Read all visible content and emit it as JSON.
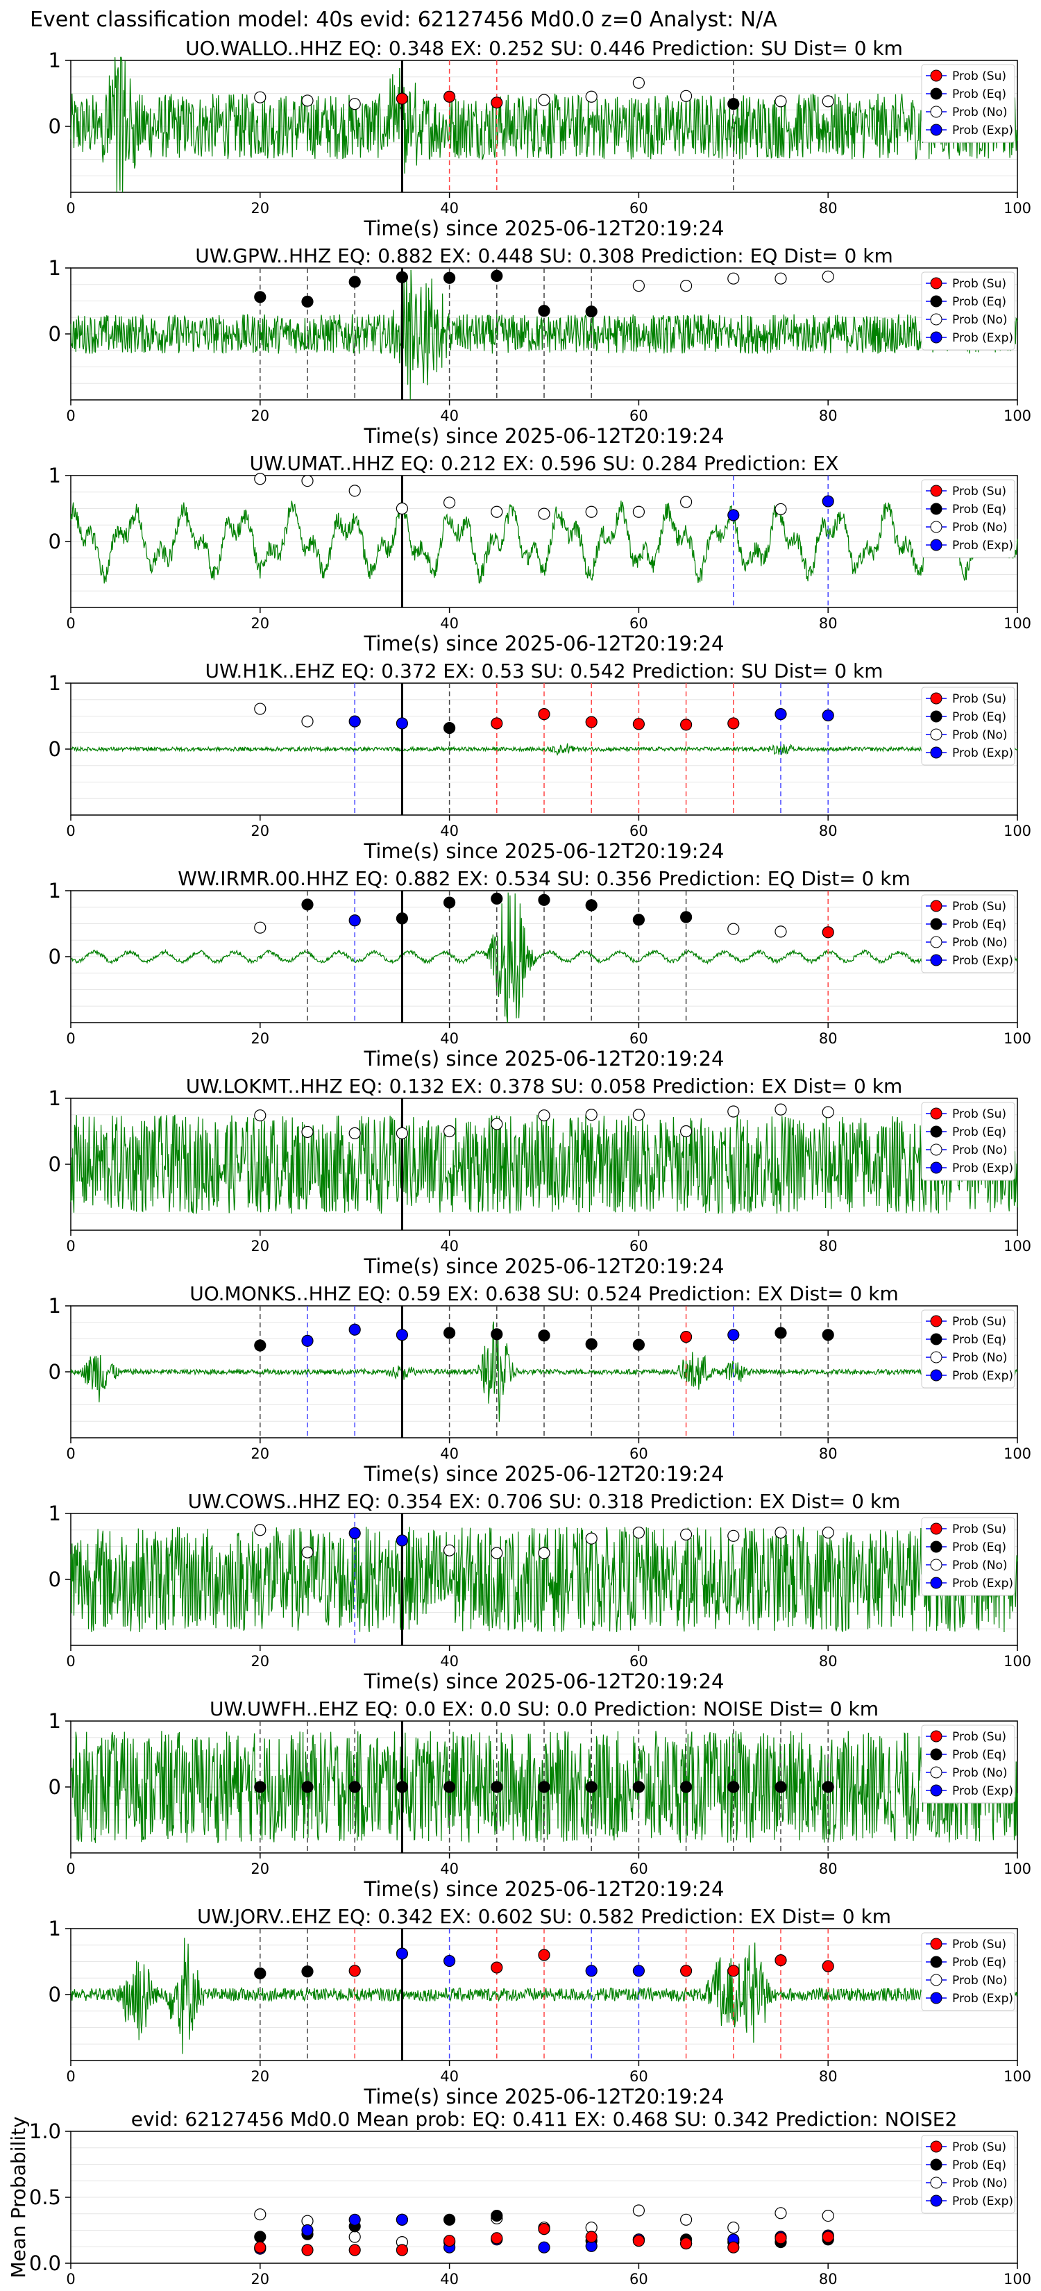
{
  "page_title": "Event classification model: 40s evid: 62127456 Md0.0 z=0 Analyst: N/A",
  "common": {
    "xlabel": "Time(s) since 2025-06-12T20:19:24",
    "xticks": [
      0,
      20,
      40,
      60,
      80,
      100
    ],
    "legend": [
      "Prob (Su)",
      "Prob (Eq)",
      "Prob (No)",
      "Prob (Exp)"
    ],
    "window_times": [
      20,
      25,
      30,
      35,
      40,
      45,
      50,
      55,
      60,
      65,
      70,
      75,
      80
    ],
    "arrival_time": 35
  },
  "colors": {
    "waveform": "#008000",
    "su": "#ff0000",
    "eq": "#000000",
    "no": "#ffffff",
    "exp": "#0000ff",
    "arrival_line": "#000000"
  },
  "chart_data": [
    {
      "type": "line",
      "title": "UO.WALLO..HHZ   EQ: 0.348   EX: 0.252   SU: 0.446   Prediction: SU    Dist= 0 km",
      "xlim": [
        0,
        100
      ],
      "ylim": [
        -1,
        1
      ],
      "yticks": [
        0,
        1
      ],
      "waveform": {
        "style": "noise",
        "amp": 0.5,
        "spikes": [
          [
            5,
            1.5
          ],
          [
            35,
            0.7
          ]
        ]
      },
      "classes": [
        "no",
        "no",
        "no",
        "su",
        "su",
        "su",
        "no",
        "no",
        "no",
        "no",
        "eq",
        "no",
        "no"
      ],
      "probs": [
        0.44,
        0.39,
        0.34,
        0.42,
        0.45,
        0.36,
        0.4,
        0.45,
        0.66,
        0.46,
        0.34,
        0.38,
        0.38
      ]
    },
    {
      "type": "line",
      "title": "UW.GPW..HHZ   EQ: 0.882   EX: 0.448   SU: 0.308   Prediction: EQ    Dist= 0 km",
      "xlim": [
        0,
        100
      ],
      "ylim": [
        -1,
        1
      ],
      "yticks": [
        0,
        1
      ],
      "waveform": {
        "style": "noise",
        "amp": 0.3,
        "spikes": [
          [
            36,
            1.0
          ],
          [
            38,
            0.8
          ]
        ]
      },
      "classes": [
        "eq",
        "eq",
        "eq",
        "eq",
        "eq",
        "eq",
        "eq",
        "eq",
        "no",
        "no",
        "no",
        "no",
        "no"
      ],
      "probs": [
        0.56,
        0.49,
        0.79,
        0.86,
        0.85,
        0.88,
        0.35,
        0.34,
        0.73,
        0.73,
        0.84,
        0.84,
        0.87
      ]
    },
    {
      "type": "line",
      "title": "UW.UMAT..HHZ   EQ: 0.212   EX: 0.596   SU: 0.284   Prediction: EX",
      "xlim": [
        0,
        100
      ],
      "ylim": [
        -1,
        1
      ],
      "yticks": [
        0,
        1
      ],
      "waveform": {
        "style": "wavy",
        "amp": 0.55,
        "spikes": []
      },
      "classes": [
        "no",
        "no",
        "no",
        "no",
        "no",
        "no",
        "no",
        "no",
        "no",
        "no",
        "exp",
        "no",
        "exp"
      ],
      "probs": [
        0.95,
        0.92,
        0.77,
        0.5,
        0.59,
        0.45,
        0.42,
        0.45,
        0.45,
        0.6,
        0.4,
        0.49,
        0.61
      ]
    },
    {
      "type": "line",
      "title": "UW.H1K..EHZ   EQ: 0.372   EX: 0.53   SU: 0.542   Prediction: SU    Dist= 0 km",
      "xlim": [
        0,
        100
      ],
      "ylim": [
        -1,
        1
      ],
      "yticks": [
        0,
        1
      ],
      "waveform": {
        "style": "flat",
        "amp": 0.03,
        "spikes": [
          [
            52,
            0.1
          ],
          [
            75,
            0.08
          ]
        ]
      },
      "classes": [
        "no",
        "no",
        "exp",
        "exp",
        "eq",
        "su",
        "su",
        "su",
        "su",
        "su",
        "su",
        "exp",
        "exp"
      ],
      "probs": [
        0.61,
        0.42,
        0.42,
        0.39,
        0.32,
        0.39,
        0.53,
        0.41,
        0.38,
        0.37,
        0.39,
        0.53,
        0.51
      ]
    },
    {
      "type": "line",
      "title": "WW.IRMR.00.HHZ   EQ: 0.882   EX: 0.534   SU: 0.356   Prediction: EQ    Dist= 0 km",
      "xlim": [
        0,
        100
      ],
      "ylim": [
        -1,
        1
      ],
      "yticks": [
        0,
        1
      ],
      "waveform": {
        "style": "quiet",
        "amp": 0.12,
        "spikes": [
          [
            46,
            1.2
          ],
          [
            47,
            0.9
          ],
          [
            97,
            0.2
          ]
        ]
      },
      "classes": [
        "no",
        "eq",
        "exp",
        "eq",
        "eq",
        "eq",
        "eq",
        "eq",
        "eq",
        "eq",
        "no",
        "no",
        "su"
      ],
      "probs": [
        0.44,
        0.79,
        0.55,
        0.58,
        0.82,
        0.88,
        0.86,
        0.78,
        0.56,
        0.6,
        0.42,
        0.38,
        0.37
      ]
    },
    {
      "type": "line",
      "title": "UW.LOKMT..HHZ   EQ: 0.132   EX: 0.378   SU: 0.058   Prediction: EX    Dist= 0 km",
      "xlim": [
        0,
        100
      ],
      "ylim": [
        -1,
        1
      ],
      "yticks": [
        0,
        1
      ],
      "waveform": {
        "style": "noise",
        "amp": 0.75,
        "spikes": []
      },
      "classes": [
        "no",
        "no",
        "no",
        "no",
        "no",
        "no",
        "no",
        "no",
        "no",
        "no",
        "no",
        "no",
        "no"
      ],
      "probs": [
        0.74,
        0.49,
        0.47,
        0.47,
        0.5,
        0.61,
        0.74,
        0.75,
        0.75,
        0.5,
        0.8,
        0.83,
        0.79
      ]
    },
    {
      "type": "line",
      "title": "UO.MONKS..HHZ   EQ: 0.59   EX: 0.638   SU: 0.524   Prediction: EX    Dist= 0 km",
      "xlim": [
        0,
        100
      ],
      "ylim": [
        -1,
        1
      ],
      "yticks": [
        0,
        1
      ],
      "waveform": {
        "style": "bursts",
        "amp": 0.04,
        "spikes": [
          [
            3,
            0.45
          ],
          [
            35,
            0.1
          ],
          [
            45,
            0.9
          ],
          [
            66,
            0.4
          ],
          [
            70,
            0.2
          ]
        ]
      },
      "classes": [
        "eq",
        "exp",
        "exp",
        "exp",
        "eq",
        "eq",
        "eq",
        "eq",
        "eq",
        "su",
        "exp",
        "eq",
        "eq"
      ],
      "probs": [
        0.4,
        0.47,
        0.64,
        0.56,
        0.59,
        0.57,
        0.55,
        0.42,
        0.41,
        0.53,
        0.56,
        0.59,
        0.56
      ]
    },
    {
      "type": "line",
      "title": "UW.COWS..HHZ   EQ: 0.354   EX: 0.706   SU: 0.318   Prediction: EX    Dist= 0 km",
      "xlim": [
        0,
        100
      ],
      "ylim": [
        -1,
        1
      ],
      "yticks": [
        0,
        1
      ],
      "waveform": {
        "style": "noise",
        "amp": 0.8,
        "spikes": []
      },
      "classes": [
        "no",
        "no",
        "exp",
        "exp",
        "no",
        "no",
        "no",
        "no",
        "no",
        "no",
        "no",
        "no",
        "no"
      ],
      "probs": [
        0.75,
        0.41,
        0.7,
        0.59,
        0.44,
        0.4,
        0.4,
        0.62,
        0.71,
        0.68,
        0.66,
        0.71,
        0.71
      ]
    },
    {
      "type": "line",
      "title": "UW.UWFH..EHZ   EQ: 0.0   EX: 0.0   SU: 0.0   Prediction: NOISE    Dist= 0 km",
      "xlim": [
        0,
        100
      ],
      "ylim": [
        -1,
        1
      ],
      "yticks": [
        0,
        1
      ],
      "waveform": {
        "style": "noise",
        "amp": 0.85,
        "spikes": []
      },
      "classes": [
        "eq",
        "eq",
        "eq",
        "eq",
        "eq",
        "eq",
        "eq",
        "eq",
        "eq",
        "eq",
        "eq",
        "eq",
        "eq"
      ],
      "probs": [
        0.0,
        0.0,
        0.0,
        0.0,
        0.0,
        0.0,
        0.0,
        0.0,
        0.0,
        0.0,
        0.0,
        0.0,
        0.0
      ]
    },
    {
      "type": "line",
      "title": "UW.JORV..EHZ   EQ: 0.342   EX: 0.602   SU: 0.582   Prediction: EX    Dist= 0 km",
      "xlim": [
        0,
        100
      ],
      "ylim": [
        -1,
        1
      ],
      "yticks": [
        0,
        1
      ],
      "waveform": {
        "style": "bursts",
        "amp": 0.1,
        "spikes": [
          [
            7,
            0.9
          ],
          [
            12,
            0.95
          ],
          [
            69,
            0.8
          ],
          [
            72,
            0.9
          ]
        ]
      },
      "classes": [
        "eq",
        "eq",
        "su",
        "exp",
        "exp",
        "su",
        "su",
        "exp",
        "exp",
        "su",
        "su",
        "su",
        "su"
      ],
      "probs": [
        0.32,
        0.35,
        0.36,
        0.62,
        0.51,
        0.41,
        0.6,
        0.36,
        0.36,
        0.36,
        0.36,
        0.52,
        0.43
      ]
    },
    {
      "type": "scatter",
      "title": "evid: 62127456  Md0.0   Mean prob:   EQ: 0.411   EX: 0.468   SU: 0.342   Prediction: NOISE2",
      "ylabel": "Mean Probability",
      "xlim": [
        0,
        100
      ],
      "ylim": [
        0,
        1
      ],
      "yticks": [
        0.0,
        0.5,
        1.0
      ],
      "ytick_labels": [
        "0.0",
        "0.5",
        "1.0"
      ],
      "series": [
        {
          "class": "no",
          "values": [
            0.37,
            0.32,
            0.2,
            0.16,
            0.16,
            0.34,
            0.27,
            0.27,
            0.4,
            0.33,
            0.27,
            0.38,
            0.36
          ]
        },
        {
          "class": "eq",
          "values": [
            0.2,
            0.22,
            0.28,
            0.33,
            0.33,
            0.36,
            0.26,
            0.17,
            0.18,
            0.18,
            0.16,
            0.16,
            0.18
          ]
        },
        {
          "class": "exp",
          "values": [
            0.11,
            0.25,
            0.33,
            0.33,
            0.12,
            0.18,
            0.12,
            0.13,
            0.18,
            0.15,
            0.18,
            0.2,
            0.21
          ]
        },
        {
          "class": "su",
          "values": [
            0.12,
            0.1,
            0.1,
            0.1,
            0.17,
            0.19,
            0.26,
            0.2,
            0.17,
            0.15,
            0.12,
            0.19,
            0.2
          ]
        }
      ]
    }
  ]
}
